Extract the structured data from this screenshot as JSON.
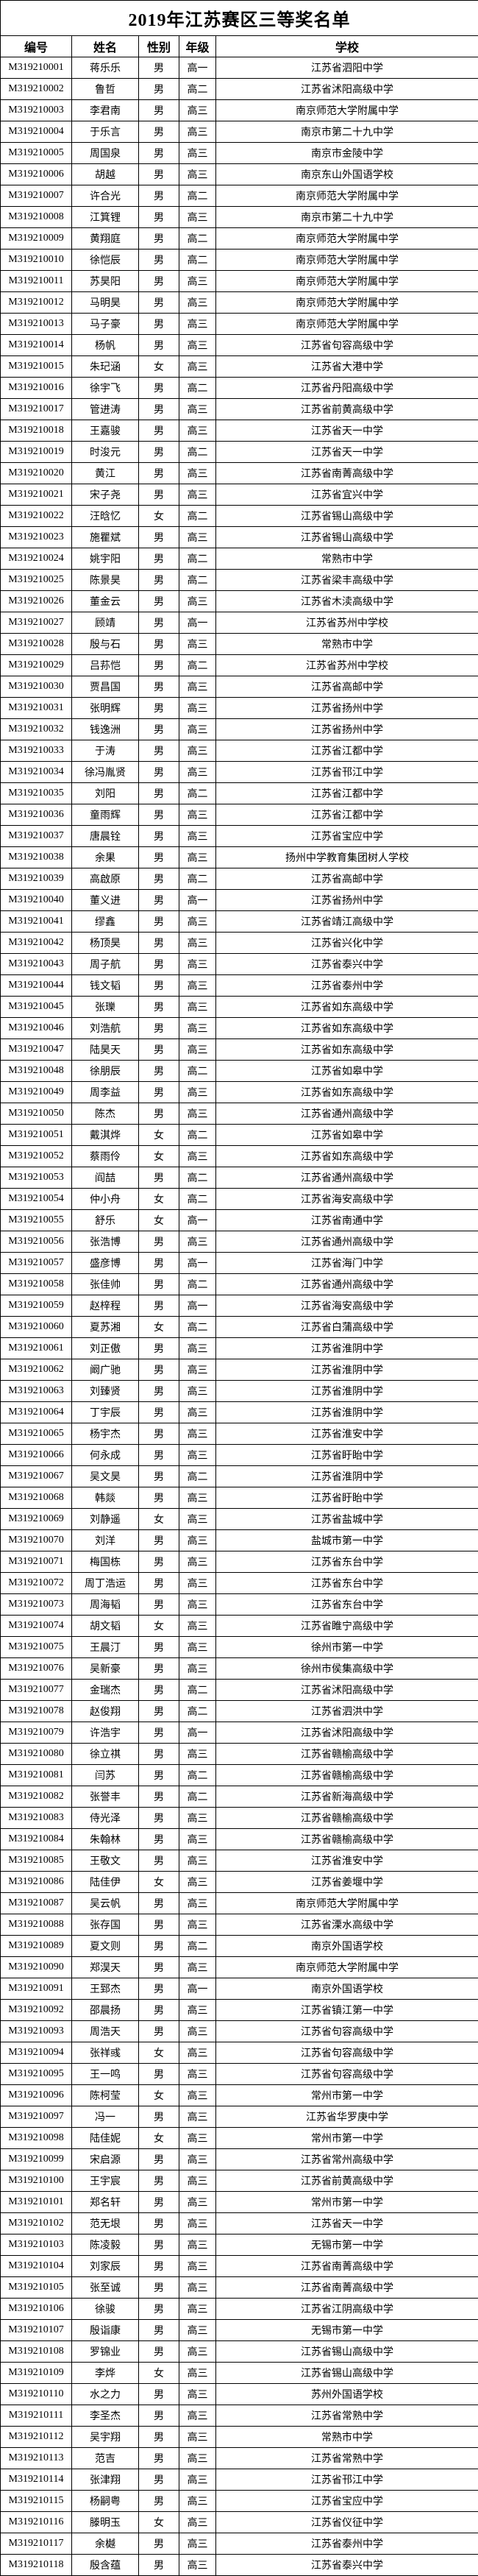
{
  "title": "2019年江苏赛区三等奖名单",
  "table": {
    "headers": [
      "编号",
      "姓名",
      "性别",
      "年级",
      "学校"
    ],
    "rows": [
      [
        "M319210001",
        "蒋乐乐",
        "男",
        "高一",
        "江苏省泗阳中学"
      ],
      [
        "M319210002",
        "鲁哲",
        "男",
        "高二",
        "江苏省沭阳高级中学"
      ],
      [
        "M319210003",
        "李君南",
        "男",
        "高三",
        "南京师范大学附属中学"
      ],
      [
        "M319210004",
        "于乐言",
        "男",
        "高三",
        "南京市第二十九中学"
      ],
      [
        "M319210005",
        "周国泉",
        "男",
        "高三",
        "南京市金陵中学"
      ],
      [
        "M319210006",
        "胡越",
        "男",
        "高三",
        "南京东山外国语学校"
      ],
      [
        "M319210007",
        "许合光",
        "男",
        "高二",
        "南京师范大学附属中学"
      ],
      [
        "M319210008",
        "江箕锂",
        "男",
        "高三",
        "南京市第二十九中学"
      ],
      [
        "M319210009",
        "黄翔庭",
        "男",
        "高二",
        "南京师范大学附属中学"
      ],
      [
        "M319210010",
        "徐恺辰",
        "男",
        "高二",
        "南京师范大学附属中学"
      ],
      [
        "M319210011",
        "苏昊阳",
        "男",
        "高三",
        "南京师范大学附属中学"
      ],
      [
        "M319210012",
        "马明昊",
        "男",
        "高三",
        "南京师范大学附属中学"
      ],
      [
        "M319210013",
        "马子豪",
        "男",
        "高三",
        "南京师范大学附属中学"
      ],
      [
        "M319210014",
        "杨帆",
        "男",
        "高三",
        "江苏省句容高级中学"
      ],
      [
        "M319210015",
        "朱玘涵",
        "女",
        "高三",
        "江苏省大港中学"
      ],
      [
        "M319210016",
        "徐宇飞",
        "男",
        "高二",
        "江苏省丹阳高级中学"
      ],
      [
        "M319210017",
        "管进涛",
        "男",
        "高三",
        "江苏省前黄高级中学"
      ],
      [
        "M319210018",
        "王嘉骏",
        "男",
        "高三",
        "江苏省天一中学"
      ],
      [
        "M319210019",
        "时浚元",
        "男",
        "高二",
        "江苏省天一中学"
      ],
      [
        "M319210020",
        "黄江",
        "男",
        "高三",
        "江苏省南菁高级中学"
      ],
      [
        "M319210021",
        "宋子尧",
        "男",
        "高三",
        "江苏省宜兴中学"
      ],
      [
        "M319210022",
        "汪晗忆",
        "女",
        "高二",
        "江苏省锡山高级中学"
      ],
      [
        "M319210023",
        "施瞿斌",
        "男",
        "高三",
        "江苏省锡山高级中学"
      ],
      [
        "M319210024",
        "姚宇阳",
        "男",
        "高二",
        "常熟市中学"
      ],
      [
        "M319210025",
        "陈景昊",
        "男",
        "高二",
        "江苏省梁丰高级中学"
      ],
      [
        "M319210026",
        "董金云",
        "男",
        "高三",
        "江苏省木渎高级中学"
      ],
      [
        "M319210027",
        "顾靖",
        "男",
        "高一",
        "江苏省苏州中学校"
      ],
      [
        "M319210028",
        "殷与石",
        "男",
        "高三",
        "常熟市中学"
      ],
      [
        "M319210029",
        "吕荪恺",
        "男",
        "高二",
        "江苏省苏州中学校"
      ],
      [
        "M319210030",
        "贾昌国",
        "男",
        "高三",
        "江苏省高邮中学"
      ],
      [
        "M319210031",
        "张明辉",
        "男",
        "高三",
        "江苏省扬州中学"
      ],
      [
        "M319210032",
        "钱逸洲",
        "男",
        "高三",
        "江苏省扬州中学"
      ],
      [
        "M319210033",
        "于涛",
        "男",
        "高三",
        "江苏省江都中学"
      ],
      [
        "M319210034",
        "徐冯胤贤",
        "男",
        "高三",
        "江苏省邗江中学"
      ],
      [
        "M319210035",
        "刘阳",
        "男",
        "高二",
        "江苏省江都中学"
      ],
      [
        "M319210036",
        "童雨辉",
        "男",
        "高三",
        "江苏省江都中学"
      ],
      [
        "M319210037",
        "唐晨铨",
        "男",
        "高三",
        "江苏省宝应中学"
      ],
      [
        "M319210038",
        "余果",
        "男",
        "高三",
        "扬州中学教育集团树人学校"
      ],
      [
        "M319210039",
        "高啟原",
        "男",
        "高二",
        "江苏省高邮中学"
      ],
      [
        "M319210040",
        "董义进",
        "男",
        "高一",
        "江苏省扬州中学"
      ],
      [
        "M319210041",
        "缪鑫",
        "男",
        "高三",
        "江苏省靖江高级中学"
      ],
      [
        "M319210042",
        "杨顶昊",
        "男",
        "高三",
        "江苏省兴化中学"
      ],
      [
        "M319210043",
        "周子航",
        "男",
        "高三",
        "江苏省泰兴中学"
      ],
      [
        "M319210044",
        "钱文韬",
        "男",
        "高三",
        "江苏省泰州中学"
      ],
      [
        "M319210045",
        "张瓅",
        "男",
        "高三",
        "江苏省如东高级中学"
      ],
      [
        "M319210046",
        "刘浩航",
        "男",
        "高三",
        "江苏省如东高级中学"
      ],
      [
        "M319210047",
        "陆昊天",
        "男",
        "高三",
        "江苏省如东高级中学"
      ],
      [
        "M319210048",
        "徐朋辰",
        "男",
        "高二",
        "江苏省如皋中学"
      ],
      [
        "M319210049",
        "周李益",
        "男",
        "高三",
        "江苏省如东高级中学"
      ],
      [
        "M319210050",
        "陈杰",
        "男",
        "高三",
        "江苏省通州高级中学"
      ],
      [
        "M319210051",
        "戴淇烨",
        "女",
        "高二",
        "江苏省如皋中学"
      ],
      [
        "M319210052",
        "蔡雨伶",
        "女",
        "高三",
        "江苏省如东高级中学"
      ],
      [
        "M319210053",
        "阎喆",
        "男",
        "高二",
        "江苏省通州高级中学"
      ],
      [
        "M319210054",
        "仲小舟",
        "女",
        "高二",
        "江苏省海安高级中学"
      ],
      [
        "M319210055",
        "舒乐",
        "女",
        "高一",
        "江苏省南通中学"
      ],
      [
        "M319210056",
        "张浩博",
        "男",
        "高三",
        "江苏省通州高级中学"
      ],
      [
        "M319210057",
        "盛彦博",
        "男",
        "高一",
        "江苏省海门中学"
      ],
      [
        "M319210058",
        "张佳帅",
        "男",
        "高二",
        "江苏省通州高级中学"
      ],
      [
        "M319210059",
        "赵梓程",
        "男",
        "高一",
        "江苏省海安高级中学"
      ],
      [
        "M319210060",
        "夏苏湘",
        "女",
        "高二",
        "江苏省白蒲高级中学"
      ],
      [
        "M319210061",
        "刘正傲",
        "男",
        "高三",
        "江苏省淮阴中学"
      ],
      [
        "M319210062",
        "阚广驰",
        "男",
        "高三",
        "江苏省淮阴中学"
      ],
      [
        "M319210063",
        "刘臻贤",
        "男",
        "高三",
        "江苏省淮阴中学"
      ],
      [
        "M319210064",
        "丁宇辰",
        "男",
        "高三",
        "江苏省淮阴中学"
      ],
      [
        "M319210065",
        "杨宇杰",
        "男",
        "高三",
        "江苏省淮安中学"
      ],
      [
        "M319210066",
        "何永成",
        "男",
        "高三",
        "江苏省盱眙中学"
      ],
      [
        "M319210067",
        "吴文昊",
        "男",
        "高二",
        "江苏省淮阴中学"
      ],
      [
        "M319210068",
        "韩燚",
        "男",
        "高三",
        "江苏省盱眙中学"
      ],
      [
        "M319210069",
        "刘静遥",
        "女",
        "高三",
        "江苏省盐城中学"
      ],
      [
        "M319210070",
        "刘洋",
        "男",
        "高三",
        "盐城市第一中学"
      ],
      [
        "M319210071",
        "梅国栋",
        "男",
        "高三",
        "江苏省东台中学"
      ],
      [
        "M319210072",
        "周丁浩运",
        "男",
        "高三",
        "江苏省东台中学"
      ],
      [
        "M319210073",
        "周海韬",
        "男",
        "高三",
        "江苏省东台中学"
      ],
      [
        "M319210074",
        "胡文韬",
        "女",
        "高三",
        "江苏省睢宁高级中学"
      ],
      [
        "M319210075",
        "王晨汀",
        "男",
        "高三",
        "徐州市第一中学"
      ],
      [
        "M319210076",
        "吴新豪",
        "男",
        "高三",
        "徐州市侯集高级中学"
      ],
      [
        "M319210077",
        "金瑞杰",
        "男",
        "高二",
        "江苏省沭阳高级中学"
      ],
      [
        "M319210078",
        "赵俊翔",
        "男",
        "高二",
        "江苏省泗洪中学"
      ],
      [
        "M319210079",
        "许浩宇",
        "男",
        "高一",
        "江苏省沭阳高级中学"
      ],
      [
        "M319210080",
        "徐立祺",
        "男",
        "高三",
        "江苏省赣榆高级中学"
      ],
      [
        "M319210081",
        "闫苏",
        "男",
        "高二",
        "江苏省赣榆高级中学"
      ],
      [
        "M319210082",
        "张誉丰",
        "男",
        "高二",
        "江苏省新海高级中学"
      ],
      [
        "M319210083",
        "侍光泽",
        "男",
        "高三",
        "江苏省赣榆高级中学"
      ],
      [
        "M319210084",
        "朱翰林",
        "男",
        "高三",
        "江苏省赣榆高级中学"
      ],
      [
        "M319210085",
        "王敬文",
        "男",
        "高三",
        "江苏省淮安中学"
      ],
      [
        "M319210086",
        "陆佳伊",
        "女",
        "高三",
        "江苏省姜堰中学"
      ],
      [
        "M319210087",
        "吴云帆",
        "男",
        "高三",
        "南京师范大学附属中学"
      ],
      [
        "M319210088",
        "张存国",
        "男",
        "高三",
        "江苏省溧水高级中学"
      ],
      [
        "M319210089",
        "夏文则",
        "男",
        "高二",
        "南京外国语学校"
      ],
      [
        "M319210090",
        "郑淏天",
        "男",
        "高三",
        "南京师范大学附属中学"
      ],
      [
        "M319210091",
        "王郅杰",
        "男",
        "高一",
        "南京外国语学校"
      ],
      [
        "M319210092",
        "邵晨扬",
        "男",
        "高三",
        "江苏省镇江第一中学"
      ],
      [
        "M319210093",
        "周浩天",
        "男",
        "高三",
        "江苏省句容高级中学"
      ],
      [
        "M319210094",
        "张祥彧",
        "女",
        "高三",
        "江苏省句容高级中学"
      ],
      [
        "M319210095",
        "王一鸣",
        "男",
        "高三",
        "江苏省句容高级中学"
      ],
      [
        "M319210096",
        "陈柯莹",
        "女",
        "高三",
        "常州市第一中学"
      ],
      [
        "M319210097",
        "冯一",
        "男",
        "高三",
        "江苏省华罗庚中学"
      ],
      [
        "M319210098",
        "陆佳妮",
        "女",
        "高三",
        "常州市第一中学"
      ],
      [
        "M319210099",
        "宋启源",
        "男",
        "高三",
        "江苏省常州高级中学"
      ],
      [
        "M319210100",
        "王宇宸",
        "男",
        "高三",
        "江苏省前黄高级中学"
      ],
      [
        "M319210101",
        "郑名轩",
        "男",
        "高三",
        "常州市第一中学"
      ],
      [
        "M319210102",
        "范无垠",
        "男",
        "高三",
        "江苏省天一中学"
      ],
      [
        "M319210103",
        "陈凌毅",
        "男",
        "高三",
        "无锡市第一中学"
      ],
      [
        "M319210104",
        "刘家辰",
        "男",
        "高三",
        "江苏省南菁高级中学"
      ],
      [
        "M319210105",
        "张至诚",
        "男",
        "高三",
        "江苏省南菁高级中学"
      ],
      [
        "M319210106",
        "徐骏",
        "男",
        "高三",
        "江苏省江阴高级中学"
      ],
      [
        "M319210107",
        "殷诣康",
        "男",
        "高三",
        "无锡市第一中学"
      ],
      [
        "M319210108",
        "罗锦业",
        "男",
        "高三",
        "江苏省锡山高级中学"
      ],
      [
        "M319210109",
        "李烨",
        "女",
        "高三",
        "江苏省锡山高级中学"
      ],
      [
        "M319210110",
        "水之力",
        "男",
        "高三",
        "苏州外国语学校"
      ],
      [
        "M319210111",
        "李圣杰",
        "男",
        "高三",
        "江苏省常熟中学"
      ],
      [
        "M319210112",
        "吴宇翔",
        "男",
        "高三",
        "常熟市中学"
      ],
      [
        "M319210113",
        "范吉",
        "男",
        "高三",
        "江苏省常熟中学"
      ],
      [
        "M319210114",
        "张津翔",
        "男",
        "高三",
        "江苏省邗江中学"
      ],
      [
        "M319210115",
        "杨嗣粤",
        "男",
        "高三",
        "江苏省宝应中学"
      ],
      [
        "M319210116",
        "滕明玉",
        "女",
        "高三",
        "江苏省仪征中学"
      ],
      [
        "M319210117",
        "余樾",
        "男",
        "高三",
        "江苏省泰州中学"
      ],
      [
        "M319210118",
        "殷含蕴",
        "男",
        "高三",
        "江苏省泰兴中学"
      ]
    ]
  }
}
